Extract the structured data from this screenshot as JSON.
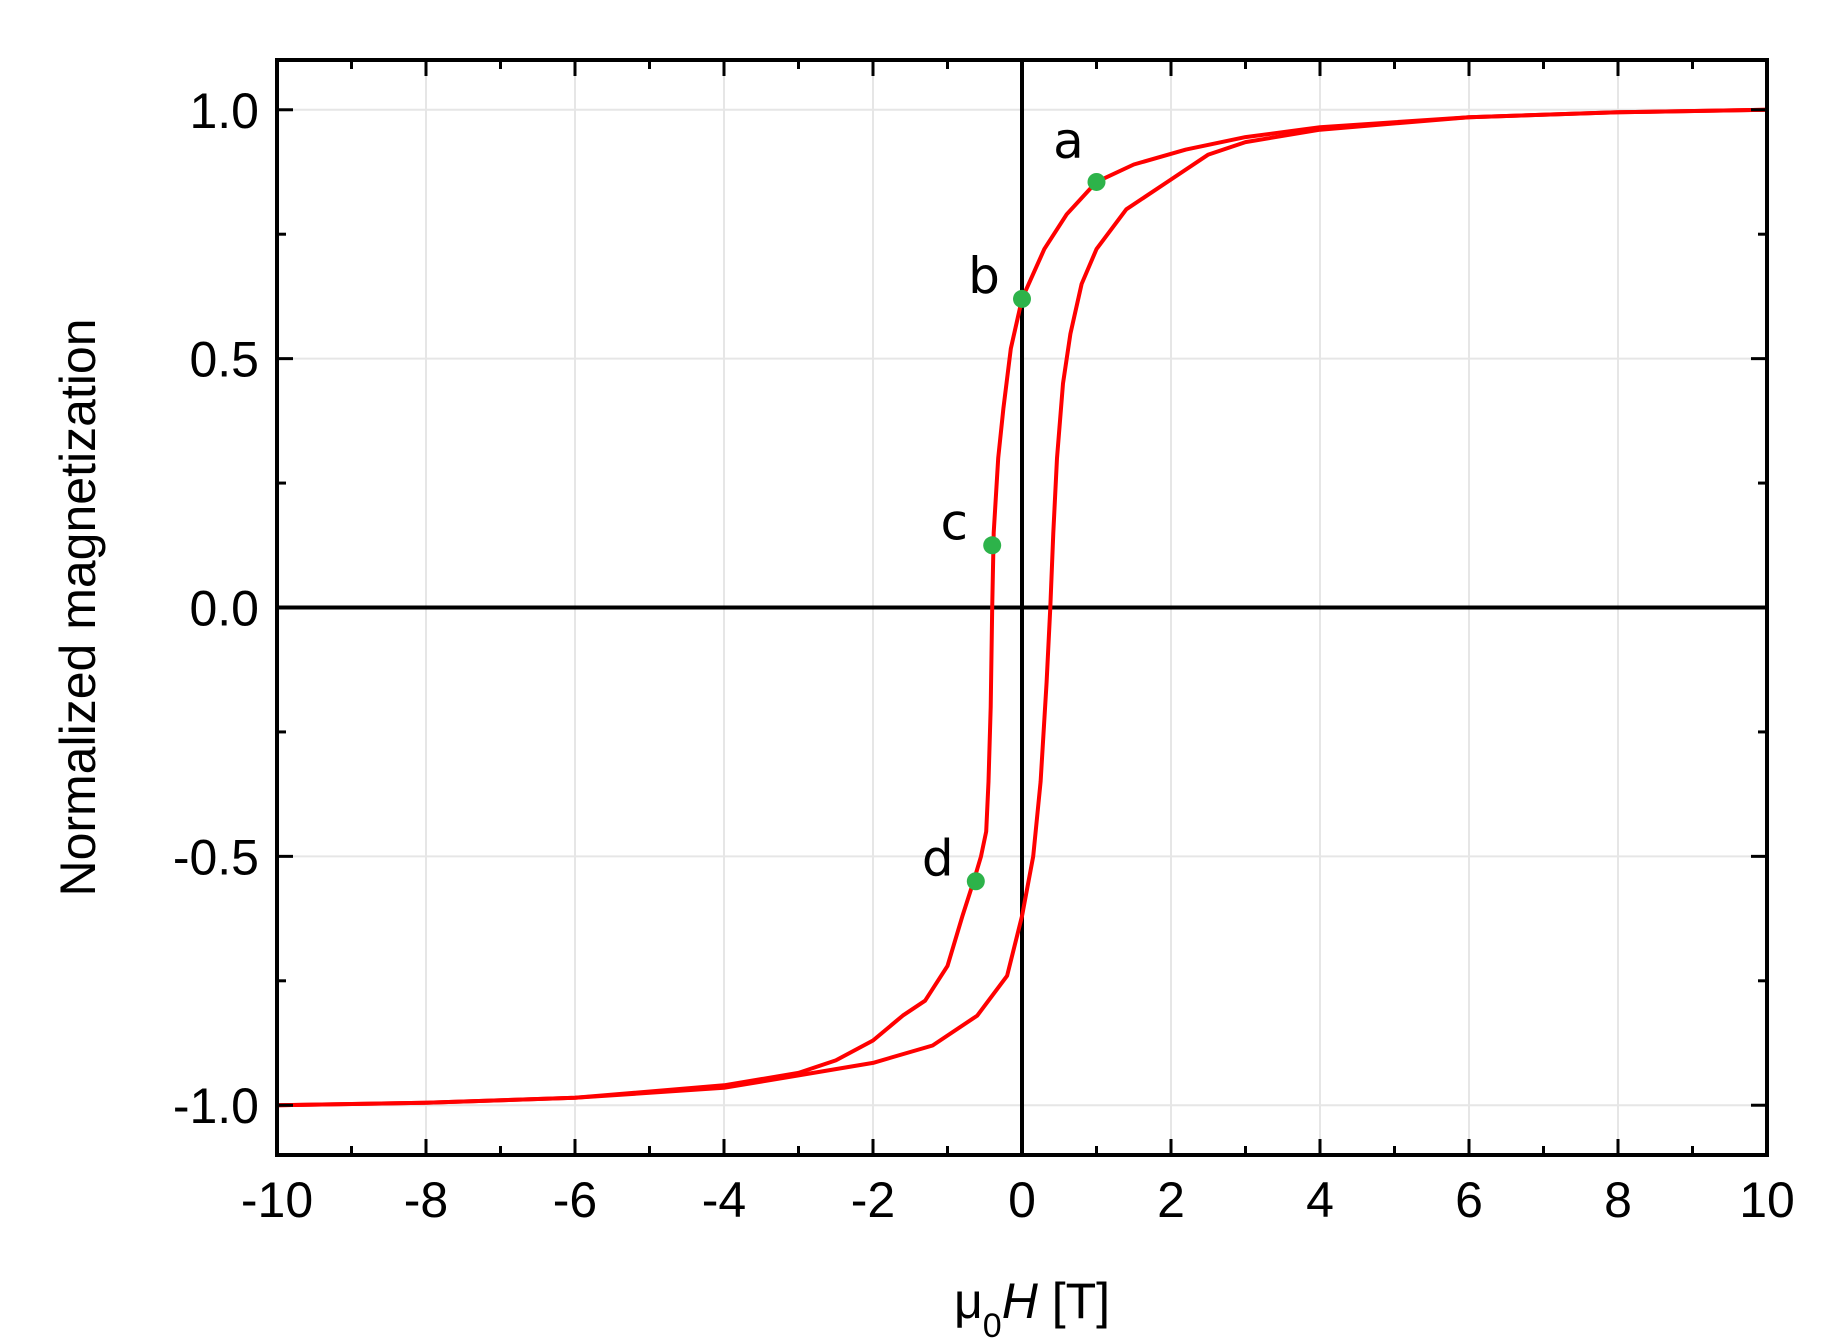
{
  "chart_data": {
    "type": "line",
    "xlabel": {
      "prefix": "μ",
      "sub": "0",
      "var": "H",
      "unit": " [T]"
    },
    "ylabel": "Normalized magnetization",
    "xlim": [
      -10,
      10
    ],
    "ylim": [
      -1.1,
      1.1
    ],
    "x_ticks": [
      -10,
      -8,
      -6,
      -4,
      -2,
      0,
      2,
      4,
      6,
      8,
      10
    ],
    "x_tick_labels": [
      "-10",
      "-8",
      "-6",
      "-4",
      "-2",
      "0",
      "2",
      "4",
      "6",
      "8",
      "10"
    ],
    "y_ticks": [
      -1.0,
      -0.5,
      0.0,
      0.5,
      1.0
    ],
    "y_tick_labels": [
      "-1.0",
      "-0.5",
      "0.0",
      "0.5",
      "1.0"
    ],
    "x_minor_step": 1,
    "y_minor_step": 0.25,
    "grid": true,
    "zero_lines": true,
    "colors": {
      "curve": "#ff0000",
      "points": "#2db34a",
      "grid": "#e6e6e6",
      "axes": "#000000"
    },
    "series": [
      {
        "values": [
          [
            10,
            1.0
          ],
          [
            8,
            0.995
          ],
          [
            6,
            0.985
          ],
          [
            4,
            0.965
          ],
          [
            3,
            0.945
          ],
          [
            2.2,
            0.92
          ],
          [
            1.5,
            0.89
          ],
          [
            1.0,
            0.855
          ],
          [
            0.6,
            0.79
          ],
          [
            0.3,
            0.72
          ],
          [
            0.0,
            0.62
          ],
          [
            -0.15,
            0.52
          ],
          [
            -0.25,
            0.4
          ],
          [
            -0.32,
            0.3
          ],
          [
            -0.38,
            0.15
          ],
          [
            -0.4,
            0.0
          ],
          [
            -0.42,
            -0.2
          ],
          [
            -0.45,
            -0.35
          ],
          [
            -0.48,
            -0.45
          ],
          [
            -0.55,
            -0.5
          ],
          [
            -0.65,
            -0.55
          ],
          [
            -0.8,
            -0.62
          ],
          [
            -1.0,
            -0.72
          ],
          [
            -1.3,
            -0.79
          ],
          [
            -1.6,
            -0.82
          ],
          [
            -2.0,
            -0.87
          ],
          [
            -2.5,
            -0.91
          ],
          [
            -3.0,
            -0.935
          ],
          [
            -4.0,
            -0.96
          ],
          [
            -6.0,
            -0.985
          ],
          [
            -8.0,
            -0.995
          ],
          [
            -10.0,
            -1.0
          ]
        ]
      },
      {
        "values": [
          [
            -10,
            -1.0
          ],
          [
            -8,
            -0.995
          ],
          [
            -6,
            -0.985
          ],
          [
            -4,
            -0.965
          ],
          [
            -3,
            -0.94
          ],
          [
            -2.0,
            -0.915
          ],
          [
            -1.2,
            -0.88
          ],
          [
            -0.6,
            -0.82
          ],
          [
            -0.2,
            -0.74
          ],
          [
            0.0,
            -0.62
          ],
          [
            0.15,
            -0.5
          ],
          [
            0.25,
            -0.35
          ],
          [
            0.33,
            -0.15
          ],
          [
            0.38,
            0.0
          ],
          [
            0.42,
            0.15
          ],
          [
            0.47,
            0.3
          ],
          [
            0.55,
            0.45
          ],
          [
            0.65,
            0.55
          ],
          [
            0.8,
            0.65
          ],
          [
            1.0,
            0.72
          ],
          [
            1.4,
            0.8
          ],
          [
            2.0,
            0.86
          ],
          [
            2.5,
            0.91
          ],
          [
            3.0,
            0.935
          ],
          [
            4.0,
            0.96
          ],
          [
            6.0,
            0.985
          ],
          [
            8.0,
            0.995
          ],
          [
            10.0,
            1.0
          ]
        ]
      }
    ],
    "points": [
      {
        "label": "a",
        "x": 1.0,
        "y": 0.855
      },
      {
        "label": "b",
        "x": 0.0,
        "y": 0.62
      },
      {
        "label": "c",
        "x": -0.4,
        "y": 0.125
      },
      {
        "label": "d",
        "x": -0.62,
        "y": -0.55
      }
    ]
  }
}
